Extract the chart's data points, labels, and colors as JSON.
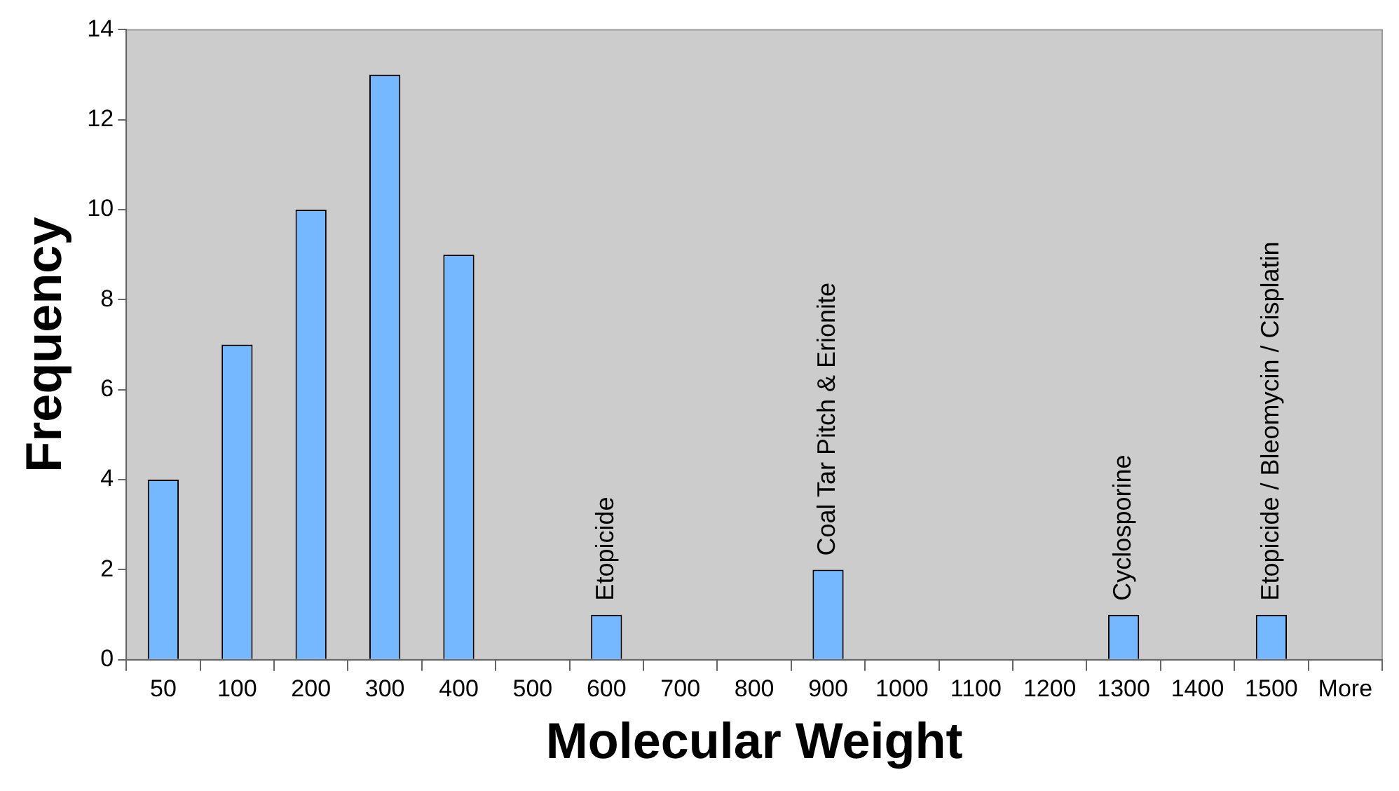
{
  "chart_data": {
    "type": "bar",
    "xlabel": "Molecular Weight",
    "ylabel": "Frequency",
    "categories": [
      "50",
      "100",
      "200",
      "300",
      "400",
      "500",
      "600",
      "700",
      "800",
      "900",
      "1000",
      "1100",
      "1200",
      "1300",
      "1400",
      "1500",
      "More"
    ],
    "values": [
      4,
      7,
      10,
      13,
      9,
      0,
      1,
      0,
      0,
      2,
      0,
      0,
      0,
      1,
      0,
      1,
      0
    ],
    "color": "#75b8ff",
    "ylim": [
      0,
      14
    ],
    "yticks": [
      0,
      2,
      4,
      6,
      8,
      10,
      12,
      14
    ],
    "grid": false,
    "legend": false,
    "annotations": [
      {
        "text": "Etopicide",
        "x": "600",
        "y": 1
      },
      {
        "text": "Coal Tar Pitch & Erionite",
        "x": "900",
        "y": 2
      },
      {
        "text": "Cyclosporine",
        "x": "1300",
        "y": 1
      },
      {
        "text": "Etopicide / Bleomycin / Cisplatin",
        "x": "1500",
        "y": 1
      }
    ]
  }
}
